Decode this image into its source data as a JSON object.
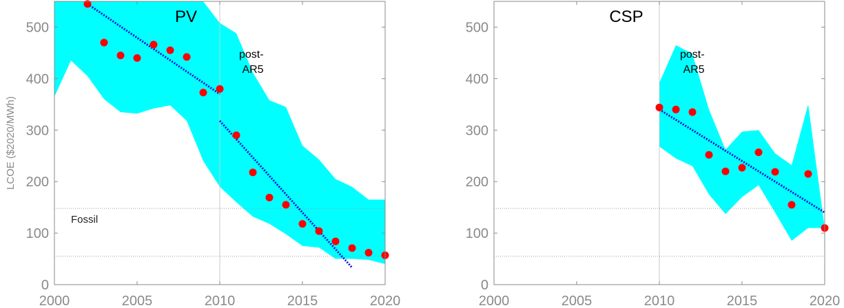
{
  "colors": {
    "band": "#00FFFF",
    "marker": "#FF0000",
    "trend": "#1010D0",
    "axis": "#8A8A8A",
    "guide": "#999999"
  },
  "chart_data": [
    {
      "type": "scatter",
      "title": "PV",
      "ylabel": "LCOE ($2020/MWh)",
      "xlim": [
        2000,
        2020
      ],
      "ylim": [
        0,
        550
      ],
      "xticks": [
        2000,
        2005,
        2010,
        2015,
        2020
      ],
      "yticks": [
        0,
        100,
        200,
        300,
        400,
        500
      ],
      "ytick_labels": [
        "0",
        "100",
        "200",
        "300",
        "400",
        "500"
      ],
      "xtick_labels": [
        "2000",
        "2005",
        "2010",
        "2015",
        "2020"
      ],
      "points": {
        "x": [
          2002,
          2003,
          2004,
          2005,
          2006,
          2007,
          2008,
          2009,
          2010,
          2011,
          2012,
          2013,
          2014,
          2015,
          2016,
          2017,
          2018,
          2019,
          2020
        ],
        "y": [
          545,
          470,
          445,
          440,
          466,
          455,
          442,
          373,
          380,
          290,
          218,
          169,
          155,
          118,
          104,
          84,
          71,
          62,
          57
        ]
      },
      "band": {
        "x": [
          2000,
          2001,
          2002,
          2003,
          2004,
          2005,
          2006,
          2007,
          2008,
          2009,
          2010,
          2011,
          2012,
          2013,
          2014,
          2015,
          2016,
          2017,
          2018,
          2019,
          2020
        ],
        "upper": [
          550,
          550,
          550,
          550,
          550,
          550,
          550,
          550,
          550,
          550,
          508,
          488,
          412,
          358,
          345,
          270,
          243,
          205,
          190,
          165,
          165
        ],
        "lower": [
          365,
          435,
          405,
          360,
          335,
          332,
          342,
          348,
          318,
          240,
          190,
          160,
          132,
          118,
          98,
          75,
          72,
          50,
          50,
          48,
          40
        ]
      },
      "trends": [
        {
          "x": [
            2002,
            2010
          ],
          "y": [
            545,
            370
          ]
        },
        {
          "x": [
            2010,
            2018
          ],
          "y": [
            318,
            33
          ]
        }
      ],
      "vline_x": 2010,
      "hlines": [
        148,
        55
      ],
      "annotations": {
        "period": "post-\nAR5",
        "fossil": "Fossil"
      }
    },
    {
      "type": "scatter",
      "title": "CSP",
      "ylabel": "",
      "xlim": [
        2000,
        2020
      ],
      "ylim": [
        0,
        550
      ],
      "xticks": [
        2000,
        2005,
        2010,
        2015,
        2020
      ],
      "yticks": [
        0,
        100,
        200,
        300,
        400,
        500
      ],
      "ytick_labels": [
        "0",
        "100",
        "200",
        "300",
        "400",
        "500"
      ],
      "xtick_labels": [
        "2000",
        "2005",
        "2010",
        "2015",
        "2020"
      ],
      "points": {
        "x": [
          2010,
          2011,
          2012,
          2013,
          2014,
          2015,
          2016,
          2017,
          2018,
          2019,
          2020
        ],
        "y": [
          344,
          340,
          335,
          252,
          220,
          227,
          257,
          219,
          155,
          215,
          110
        ]
      },
      "band": {
        "x": [
          2010,
          2011,
          2012,
          2013,
          2014,
          2015,
          2016,
          2017,
          2018,
          2019,
          2020
        ],
        "upper": [
          392,
          465,
          448,
          340,
          262,
          297,
          300,
          255,
          232,
          350,
          110
        ],
        "lower": [
          268,
          245,
          230,
          175,
          137,
          170,
          193,
          140,
          85,
          110,
          110
        ]
      },
      "trends": [
        {
          "x": [
            2010,
            2020
          ],
          "y": [
            340,
            140
          ]
        }
      ],
      "vline_x": 2010,
      "hlines": [
        148,
        55
      ],
      "annotations": {
        "period": "post-\nAR5",
        "fossil": ""
      }
    }
  ]
}
